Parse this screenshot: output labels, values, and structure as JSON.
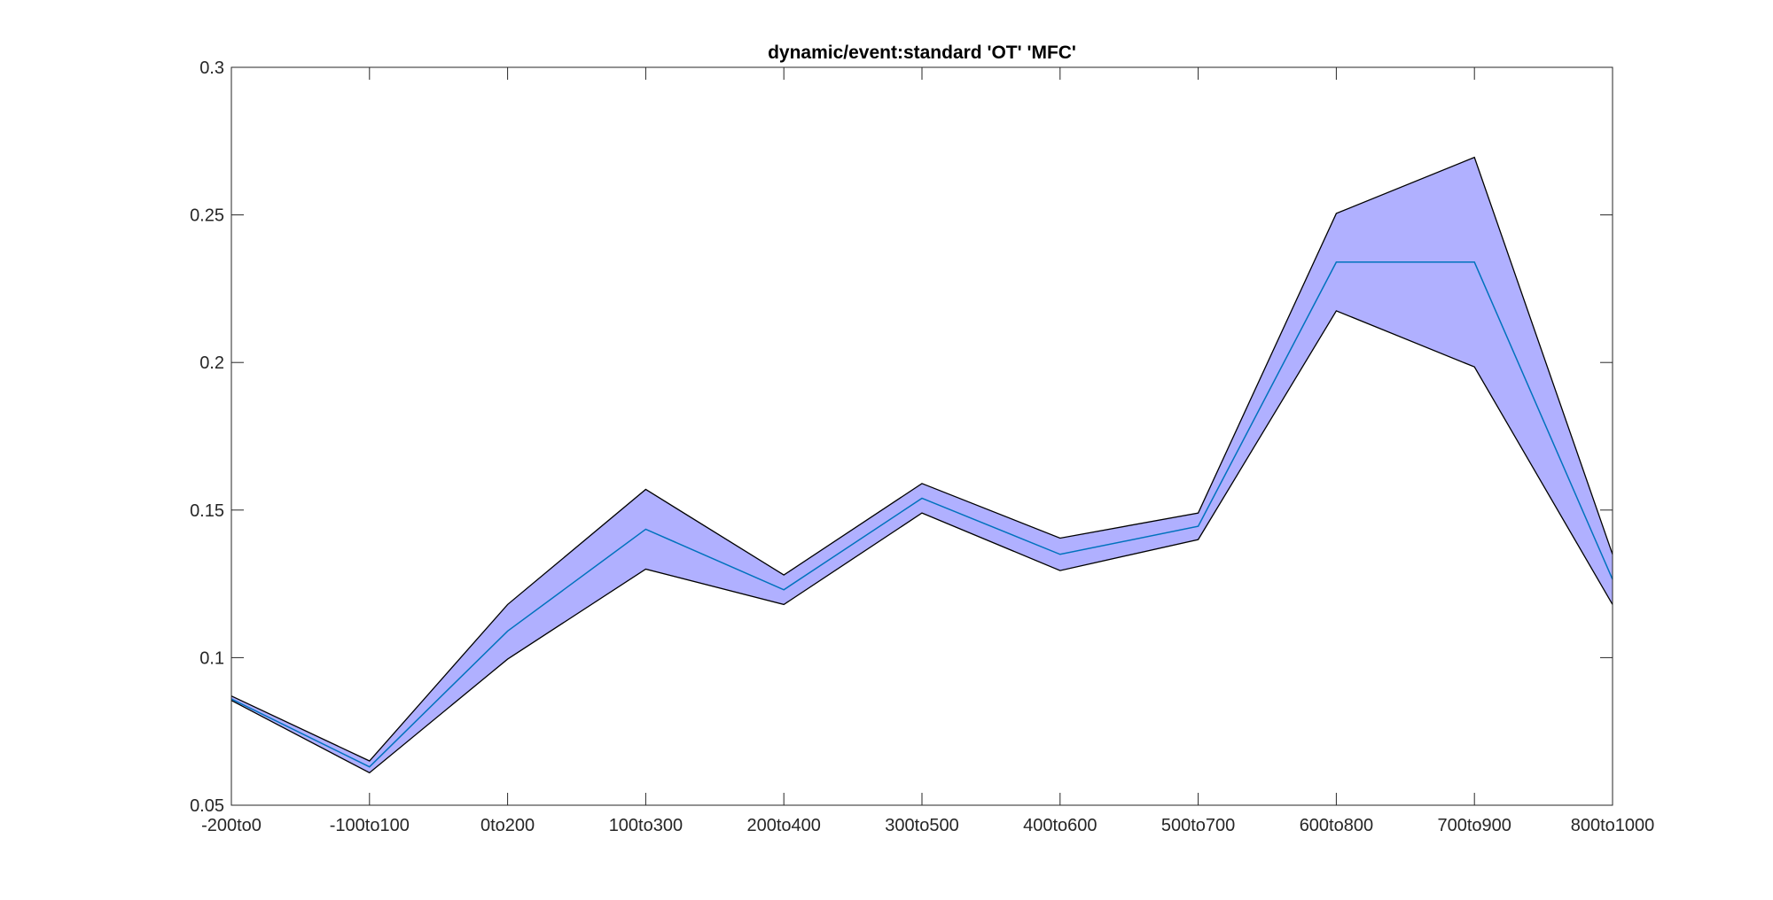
{
  "chart_data": {
    "type": "area",
    "title": "dynamic/event:standard 'OT'  'MFC'",
    "xlabel": "",
    "ylabel": "",
    "categories": [
      "-200to0",
      "-100to100",
      "0to200",
      "100to300",
      "200to400",
      "300to500",
      "400to600",
      "500to700",
      "600to800",
      "700to900",
      "800to1000"
    ],
    "ylim": [
      0.05,
      0.3
    ],
    "yticks": [
      0.05,
      0.1,
      0.15,
      0.2,
      0.25,
      0.3
    ],
    "ytick_labels": [
      "0.05",
      "0.1",
      "0.15",
      "0.2",
      "0.25",
      "0.3"
    ],
    "grid": false,
    "series": [
      {
        "role": "mean",
        "values": [
          0.086,
          0.063,
          0.109,
          0.1435,
          0.123,
          0.154,
          0.135,
          0.1445,
          0.234,
          0.234,
          0.1265
        ],
        "color": "#0072BD"
      },
      {
        "role": "upper",
        "values": [
          0.087,
          0.065,
          0.118,
          0.157,
          0.128,
          0.159,
          0.1405,
          0.149,
          0.2505,
          0.2695,
          0.135
        ],
        "color": "#000000"
      },
      {
        "role": "lower",
        "values": [
          0.0855,
          0.061,
          0.0995,
          0.13,
          0.118,
          0.149,
          0.1295,
          0.14,
          0.2175,
          0.1985,
          0.118
        ],
        "color": "#000000"
      }
    ],
    "band_fill": "#B0B0FF"
  }
}
